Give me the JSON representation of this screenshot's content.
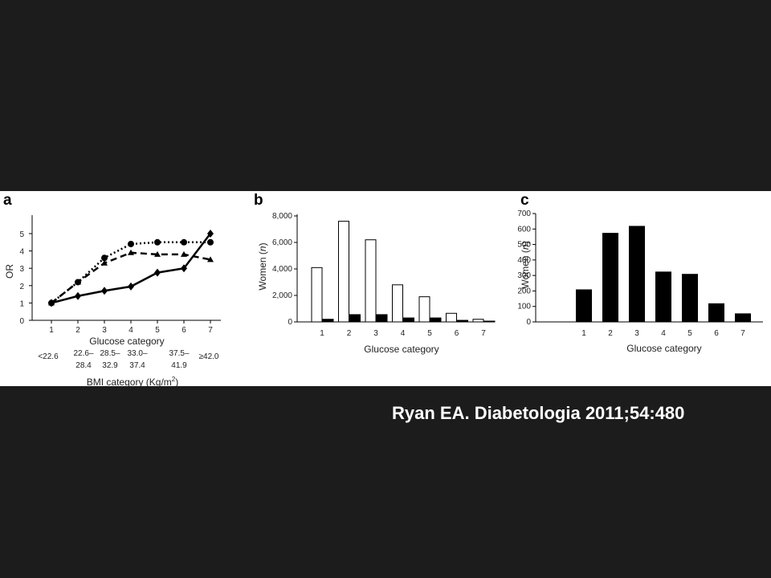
{
  "citation": "Ryan EA. Diabetologia 2011;54:480",
  "colors": {
    "background": "#1c1c1c",
    "figure_bg": "#ffffff",
    "ink": "#000000"
  },
  "chart_data": [
    {
      "panel": "a",
      "type": "line",
      "xlabel": "Glucose category",
      "ylabel": "OR",
      "categories": [
        "1",
        "2",
        "3",
        "4",
        "5",
        "6",
        "7"
      ],
      "ylim": [
        0,
        5
      ],
      "yticks": [
        "0",
        "1",
        "2",
        "3",
        "4",
        "5"
      ],
      "bmi_axis_label": "BMI category (Kg/m",
      "bmi_axis_sup": "2",
      "bmi_axis_close": ")",
      "bmi_categories": [
        {
          "top": "<22.6",
          "bottom": ""
        },
        {
          "top": "22.6–",
          "bottom": "28.4"
        },
        {
          "top": "28.5–",
          "bottom": "32.9"
        },
        {
          "top": "33.0–",
          "bottom": "37.4"
        },
        {
          "top": "37.5–",
          "bottom": "41.9"
        },
        {
          "top": "≥42.0",
          "bottom": ""
        }
      ],
      "series": [
        {
          "marker": "diamond",
          "style": "solid",
          "x": [
            1,
            2,
            3,
            4,
            5,
            6,
            7
          ],
          "values": [
            1.0,
            1.4,
            1.7,
            1.95,
            2.75,
            3.0,
            5.0
          ]
        },
        {
          "marker": "circle",
          "style": "dotted",
          "x": [
            1,
            2,
            3,
            4,
            5,
            6,
            7
          ],
          "values": [
            1.0,
            2.2,
            3.6,
            4.4,
            4.5,
            4.5,
            4.5
          ]
        },
        {
          "marker": "triangle",
          "style": "dashed",
          "x": [
            1,
            2,
            3,
            4,
            5,
            6,
            7
          ],
          "values": [
            1.0,
            2.2,
            3.3,
            3.9,
            3.8,
            3.8,
            3.5
          ]
        }
      ]
    },
    {
      "panel": "b",
      "type": "bar",
      "xlabel": "Glucose category",
      "ylabel_main": "Women (",
      "ylabel_italic": "n",
      "ylabel_close": ")",
      "categories": [
        "1",
        "2",
        "3",
        "4",
        "5",
        "6",
        "7"
      ],
      "ylim": [
        0,
        8000
      ],
      "yticks": [
        "0",
        "2,000",
        "4,000",
        "6,000",
        "8,000"
      ],
      "series": [
        {
          "fill": "white",
          "values": [
            4100,
            7600,
            6200,
            2800,
            1900,
            650,
            200
          ]
        },
        {
          "fill": "black",
          "values": [
            200,
            550,
            550,
            300,
            300,
            120,
            60
          ]
        }
      ]
    },
    {
      "panel": "c",
      "type": "bar",
      "xlabel": "Glucose category",
      "ylabel_main": "Women (",
      "ylabel_italic": "n",
      "ylabel_close": ")",
      "categories": [
        "1",
        "2",
        "3",
        "4",
        "5",
        "6",
        "7"
      ],
      "ylim": [
        0,
        700
      ],
      "yticks": [
        "0",
        "100",
        "200",
        "300",
        "400",
        "500",
        "600",
        "700"
      ],
      "series": [
        {
          "fill": "black",
          "values": [
            210,
            575,
            620,
            325,
            310,
            120,
            55
          ]
        }
      ]
    }
  ]
}
